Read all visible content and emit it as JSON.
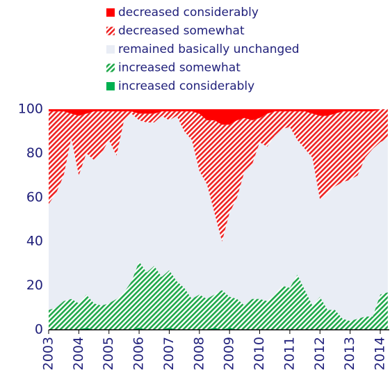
{
  "chart_data": {
    "type": "stacked-area",
    "x": [
      2003,
      2003.25,
      2003.5,
      2003.75,
      2004,
      2004.25,
      2004.5,
      2004.75,
      2005,
      2005.25,
      2005.5,
      2005.75,
      2006,
      2006.25,
      2006.5,
      2006.75,
      2007,
      2007.25,
      2007.5,
      2007.75,
      2008,
      2008.25,
      2008.5,
      2008.75,
      2009,
      2009.25,
      2009.5,
      2009.75,
      2010,
      2010.25,
      2010.5,
      2010.75,
      2011,
      2011.25,
      2011.5,
      2011.75,
      2012,
      2012.25,
      2012.5,
      2012.75,
      2013,
      2013.25,
      2013.5,
      2013.75,
      2014,
      2014.25
    ],
    "series": [
      {
        "name": "increased considerably",
        "color": "#00b050",
        "hatch": false,
        "values": [
          0,
          0,
          0,
          0,
          0,
          1,
          0,
          0,
          0,
          0,
          0,
          0,
          1,
          0,
          0,
          0,
          1,
          0,
          0,
          0,
          0,
          0,
          1,
          0,
          1,
          0,
          0,
          0,
          0,
          0,
          0,
          0,
          0,
          0,
          0,
          0,
          0,
          0,
          0,
          0,
          0,
          0,
          0,
          0,
          0,
          0
        ]
      },
      {
        "name": "increased somewhat",
        "color": "#1fa84a",
        "hatch": true,
        "values": [
          9,
          10,
          13,
          14,
          12,
          15,
          12,
          11,
          12,
          14,
          17,
          22,
          30,
          26,
          29,
          24,
          26,
          22,
          19,
          14,
          16,
          14,
          15,
          18,
          14,
          14,
          11,
          14,
          14,
          13,
          16,
          20,
          19,
          25,
          18,
          11,
          15,
          9,
          9,
          5,
          4,
          5,
          6,
          6,
          16,
          17
        ]
      },
      {
        "name": "remained basically unchanged",
        "color": "#e9edf5",
        "hatch": false,
        "values": [
          48,
          52,
          57,
          73,
          58,
          64,
          65,
          69,
          74,
          65,
          78,
          76,
          64,
          68,
          65,
          73,
          68,
          75,
          71,
          72,
          56,
          52,
          37,
          22,
          38,
          46,
          61,
          61,
          71,
          70,
          72,
          71,
          73,
          61,
          64,
          67,
          44,
          53,
          56,
          62,
          64,
          65,
          72,
          76,
          69,
          70
        ]
      },
      {
        "name": "decreased somewhat",
        "color": "#ee2222",
        "hatch": true,
        "values": [
          42,
          37,
          29,
          11,
          27,
          18,
          22,
          19,
          13,
          20,
          4,
          1,
          3,
          4,
          4,
          2,
          4,
          2,
          9,
          13,
          26,
          29,
          42,
          53,
          40,
          35,
          24,
          20,
          11,
          15,
          11,
          8,
          7,
          13,
          17,
          20,
          38,
          35,
          33,
          32,
          31,
          29,
          21,
          17,
          15,
          13
        ]
      },
      {
        "name": "decreased considerably",
        "color": "#ff0000",
        "hatch": false,
        "values": [
          1,
          1,
          1,
          2,
          3,
          2,
          1,
          1,
          1,
          1,
          1,
          1,
          2,
          2,
          2,
          1,
          1,
          1,
          1,
          1,
          2,
          5,
          5,
          7,
          7,
          5,
          4,
          5,
          4,
          2,
          1,
          1,
          1,
          1,
          1,
          2,
          3,
          3,
          2,
          1,
          1,
          1,
          1,
          1,
          0,
          0
        ]
      }
    ],
    "xlim": [
      2003,
      2014.3
    ],
    "xticks": [
      2003,
      2004,
      2005,
      2006,
      2007,
      2008,
      2009,
      2010,
      2011,
      2012,
      2013,
      2014
    ],
    "ylim": [
      0,
      100
    ],
    "yticks": [
      0,
      20,
      40,
      60,
      80,
      100
    ]
  }
}
